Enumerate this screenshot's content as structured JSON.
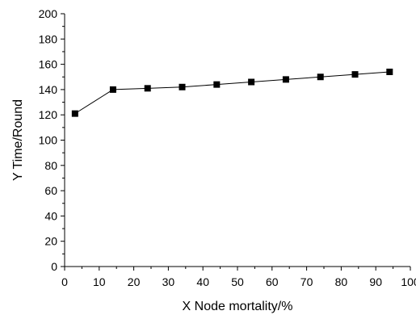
{
  "chart_data": {
    "type": "line",
    "title": "",
    "xlabel": "X Node mortality/%",
    "ylabel": "Y Time/Round",
    "xlim": [
      0,
      100
    ],
    "ylim": [
      0,
      200
    ],
    "x_ticks": [
      0,
      10,
      20,
      30,
      40,
      50,
      60,
      70,
      80,
      90,
      100
    ],
    "y_ticks": [
      0,
      20,
      40,
      60,
      80,
      100,
      120,
      140,
      160,
      180,
      200
    ],
    "grid": false,
    "legend": "none",
    "series": [
      {
        "x": [
          3,
          14,
          24,
          34,
          44,
          54,
          64,
          74,
          84,
          94
        ],
        "y": [
          121,
          140,
          141,
          142,
          144,
          146,
          148,
          150,
          152,
          154
        ],
        "marker": "square",
        "color": "#000000"
      }
    ]
  }
}
